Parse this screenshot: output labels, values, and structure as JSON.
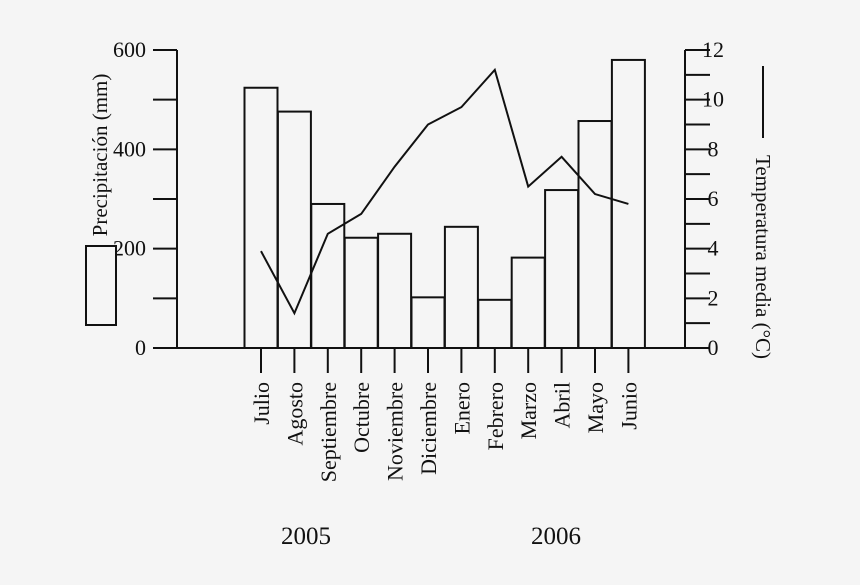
{
  "chart_data": {
    "type": "bar",
    "categories": [
      "Julio",
      "Agosto",
      "Septiembre",
      "Octubre",
      "Noviembre",
      "Diciembre",
      "Enero",
      "Febrero",
      "Marzo",
      "Abril",
      "Mayo",
      "Junio"
    ],
    "series": [
      {
        "name": "Precipitación (mm)",
        "type": "bar",
        "axis": "left",
        "values": [
          524,
          476,
          290,
          222,
          230,
          102,
          244,
          97,
          182,
          318,
          457,
          580
        ]
      },
      {
        "name": "Temperatura media (°C)",
        "type": "line",
        "axis": "right",
        "values": [
          3.9,
          1.4,
          4.6,
          5.4,
          7.3,
          9.0,
          9.7,
          11.2,
          6.5,
          7.7,
          6.2,
          5.8
        ]
      }
    ],
    "ylabel_left": "Precipitación (mm)",
    "ylabel_right": "Temperatura media (°C)",
    "ylim_left": [
      0,
      600
    ],
    "ylim_right": [
      0,
      12
    ],
    "yticks_left": [
      "0",
      "200",
      "400",
      "600"
    ],
    "yticks_right": [
      "0",
      "2",
      "4",
      "6",
      "8",
      "10",
      "12"
    ],
    "years": [
      "2005",
      "2006"
    ],
    "grid": false
  }
}
